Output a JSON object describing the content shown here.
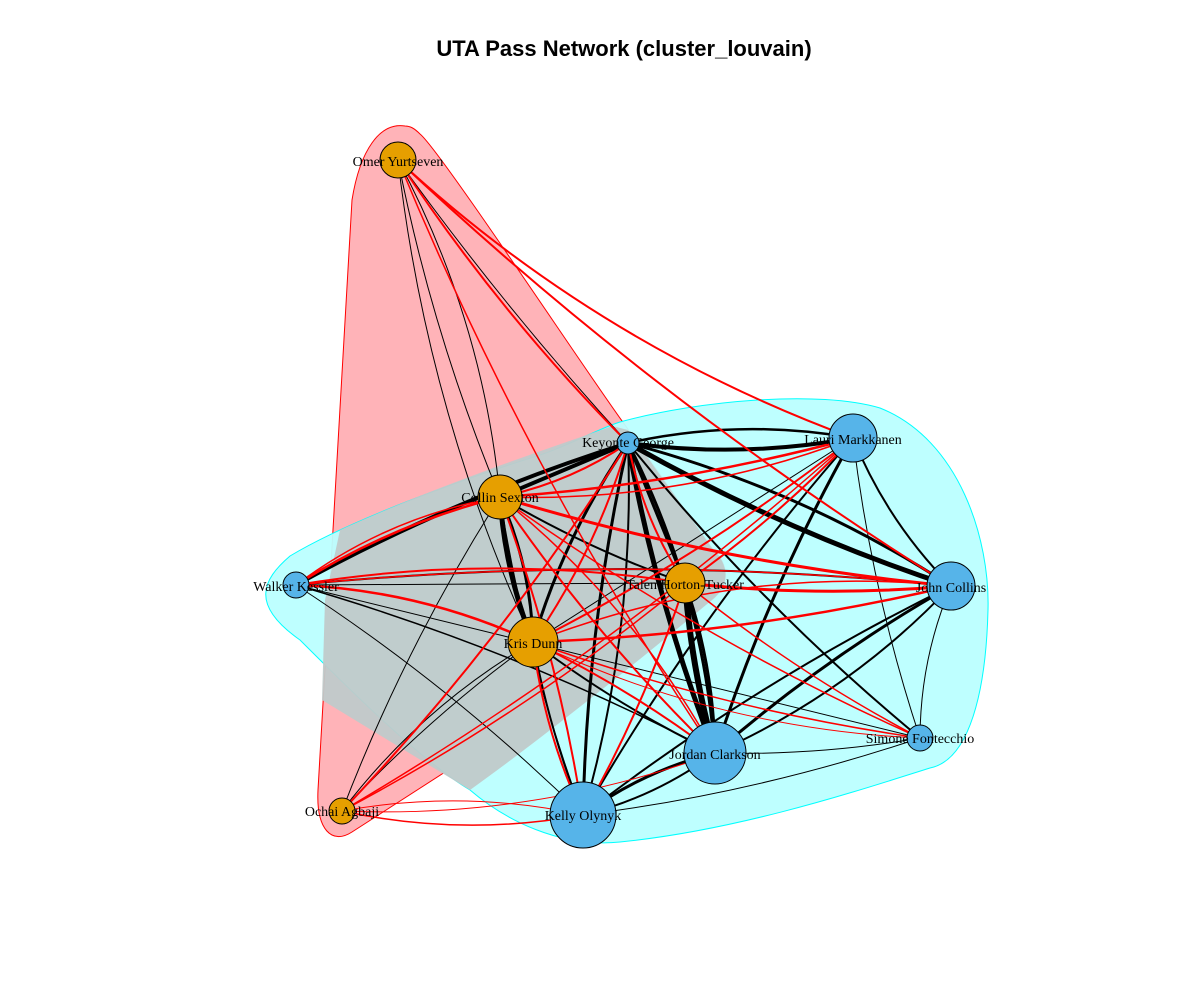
{
  "title": "UTA Pass Network (cluster_louvain)",
  "colors": {
    "cluster_orange_node": "#E69F00",
    "cluster_blue_node": "#56B4E9",
    "hull_red_fill": "#FFB3B8",
    "hull_red_stroke": "#FF0000",
    "hull_cyan_fill": "#BBFFFF",
    "hull_cyan_stroke": "#00FFFF",
    "edge_within": "#000000",
    "edge_between": "#FF0000"
  },
  "nodes": [
    {
      "id": "omer",
      "label": "Omer Yurtseven",
      "group": "orange"
    },
    {
      "id": "keyonte",
      "label": "Keyonte George",
      "group": "blue"
    },
    {
      "id": "lauri",
      "label": "Lauri Markkanen",
      "group": "blue"
    },
    {
      "id": "collin",
      "label": "Collin Sexton",
      "group": "orange"
    },
    {
      "id": "walker",
      "label": "Walker Kessler",
      "group": "blue"
    },
    {
      "id": "taylor",
      "label": "Talen Horton-Tucker",
      "group": "orange"
    },
    {
      "id": "john",
      "label": "John Collins",
      "group": "blue"
    },
    {
      "id": "kris",
      "label": "Kris Dunn",
      "group": "orange"
    },
    {
      "id": "simone",
      "label": "Simone Fontecchio",
      "group": "blue"
    },
    {
      "id": "jordan",
      "label": "Jordan Clarkson",
      "group": "blue"
    },
    {
      "id": "ochai",
      "label": "Ochai Agbaji",
      "group": "orange"
    },
    {
      "id": "kelly",
      "label": "Kelly Olynyk",
      "group": "blue"
    }
  ]
}
